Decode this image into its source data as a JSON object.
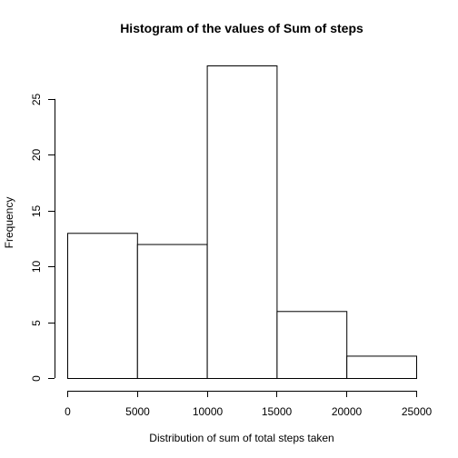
{
  "chart_data": {
    "type": "bar",
    "title": "Histogram of the values of Sum of steps",
    "xlabel": "Distribution of sum of total steps taken",
    "ylabel": "Frequency",
    "bins": [
      {
        "start": 0,
        "end": 5000,
        "count": 13
      },
      {
        "start": 5000,
        "end": 10000,
        "count": 12
      },
      {
        "start": 10000,
        "end": 15000,
        "count": 28
      },
      {
        "start": 15000,
        "end": 20000,
        "count": 6
      },
      {
        "start": 20000,
        "end": 25000,
        "count": 2
      }
    ],
    "xlim": [
      0,
      25000
    ],
    "ylim": [
      0,
      28
    ],
    "x_ticks": [
      0,
      5000,
      10000,
      15000,
      20000,
      25000
    ],
    "y_ticks": [
      0,
      5,
      10,
      15,
      20,
      25
    ],
    "x_tick_labels": [
      "0",
      "5000",
      "10000",
      "15000",
      "20000",
      "25000"
    ],
    "y_tick_labels": [
      "0",
      "5",
      "10",
      "15",
      "20",
      "25"
    ],
    "grid": false,
    "legend": "none",
    "bar_fill": "#ffffff",
    "bar_stroke": "#000000"
  }
}
